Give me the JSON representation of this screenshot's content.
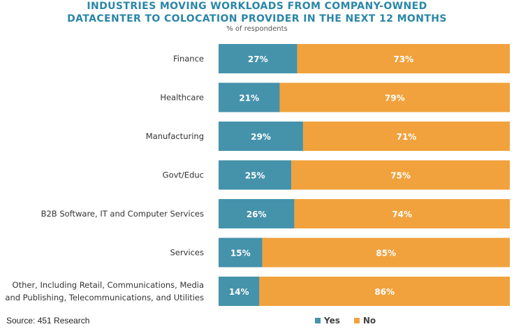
{
  "chart_data": {
    "type": "bar",
    "orientation": "horizontal",
    "stacked": true,
    "title_lines": [
      "INDUSTRIES MOVING WORKLOADS FROM COMPANY-OWNED",
      "DATACENTER TO COLOCATION PROVIDER IN THE NEXT 12 MONTHS"
    ],
    "subtitle": "% of respondents",
    "categories": [
      [
        "Finance"
      ],
      [
        "Healthcare"
      ],
      [
        "Manufacturing"
      ],
      [
        "Govt/Educ"
      ],
      [
        "B2B Software, IT and Computer Services"
      ],
      [
        "Services"
      ],
      [
        "Other, Including Retail, Communications, Media",
        "and Publishing, Telecommunications, and Utilities"
      ]
    ],
    "series": [
      {
        "name": "Yes",
        "color": "#4592ab",
        "values": [
          27,
          21,
          29,
          25,
          26,
          15,
          14
        ]
      },
      {
        "name": "No",
        "color": "#f1a23d",
        "values": [
          73,
          79,
          71,
          75,
          74,
          85,
          86
        ]
      }
    ],
    "data_labels": [
      [
        "27%",
        "21%",
        "29%",
        "25%",
        "26%",
        "15%",
        "14%"
      ],
      [
        "73%",
        "79%",
        "71%",
        "75%",
        "74%",
        "85%",
        "86%"
      ]
    ],
    "xlim": [
      0,
      100
    ],
    "grid": false,
    "legend_position": "bottom-right"
  },
  "source": "Source: 451 Research"
}
